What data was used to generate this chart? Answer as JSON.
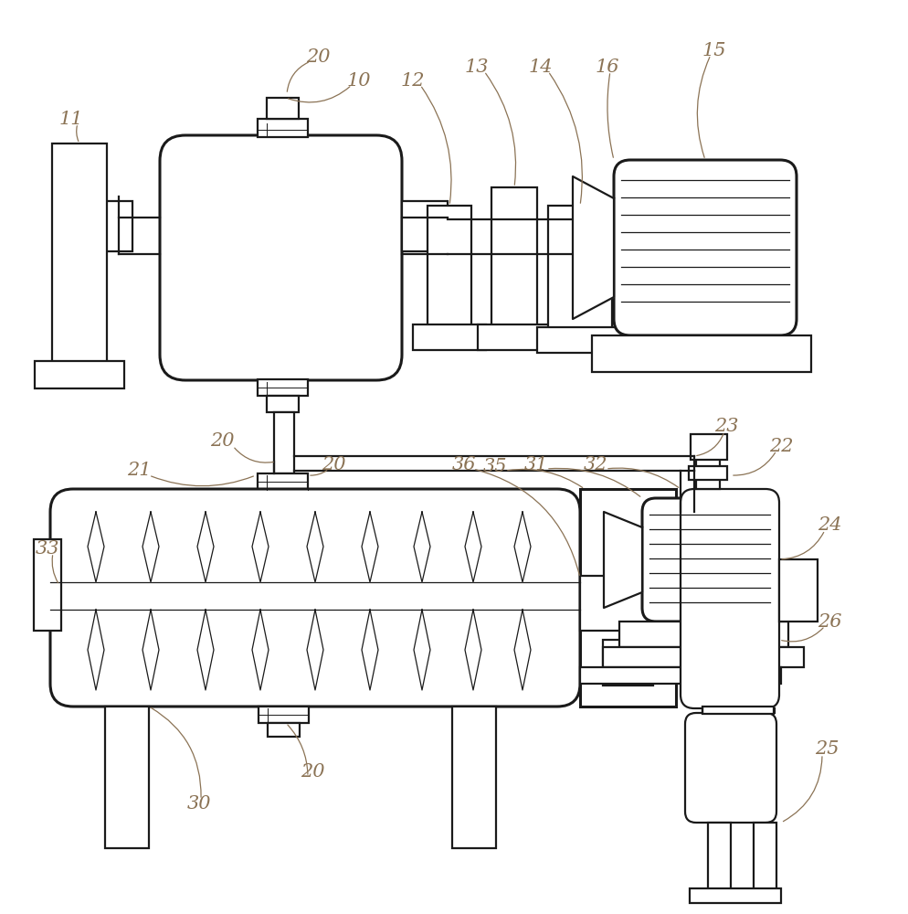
{
  "bg_color": "#ffffff",
  "lc": "#1a1a1a",
  "label_color": "#8B7355",
  "fig_w": 9.95,
  "fig_h": 10.0,
  "lw_main": 1.6,
  "lw_thick": 2.2,
  "lw_thin": 0.9
}
